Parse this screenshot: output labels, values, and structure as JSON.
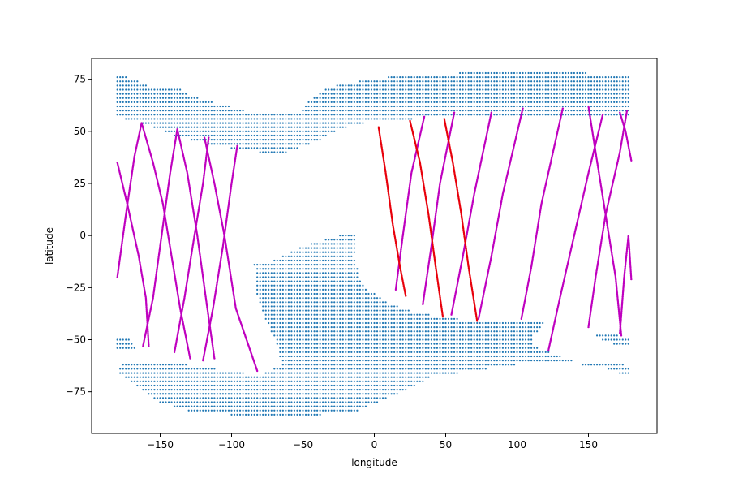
{
  "chart_data": {
    "type": "scatter",
    "title": "",
    "xlabel": "longitude",
    "ylabel": "latitude",
    "xlim": [
      -198,
      198
    ],
    "ylim": [
      -95,
      85
    ],
    "xticks": [
      -150,
      -100,
      -50,
      0,
      50,
      100,
      150
    ],
    "xtick_labels": [
      "−150",
      "−100",
      "−50",
      "0",
      "50",
      "100",
      "150"
    ],
    "yticks": [
      -75,
      -50,
      -25,
      0,
      25,
      50,
      75
    ],
    "ytick_labels": [
      "−75",
      "−50",
      "−25",
      "0",
      "25",
      "50",
      "75"
    ],
    "grid": false,
    "legend": "none",
    "series": [
      {
        "kind": "grid-points",
        "color": "#1f77b4",
        "regions": [
          {
            "lon_step": 2,
            "lat_step": 2,
            "polygon": [
              [
                -180,
                77
              ],
              [
                -167,
                75
              ],
              [
                -158,
                72
              ],
              [
                -136,
                71
              ],
              [
                -130,
                68
              ],
              [
                -120,
                65
              ],
              [
                -100,
                62
              ],
              [
                -90,
                60
              ],
              [
                -80,
                59
              ],
              [
                -55,
                58
              ],
              [
                -48,
                62
              ],
              [
                -45,
                65
              ],
              [
                -34,
                70
              ],
              [
                -22,
                73
              ],
              [
                0,
                75
              ],
              [
                20,
                77
              ],
              [
                40,
                78
              ],
              [
                60,
                78
              ],
              [
                80,
                80
              ],
              [
                100,
                80
              ],
              [
                150,
                78
              ],
              [
                180,
                78
              ],
              [
                180,
                57
              ],
              [
                112,
                58
              ],
              [
                55,
                57
              ],
              [
                0,
                55
              ],
              [
                -25,
                51
              ],
              [
                -40,
                45
              ],
              [
                -60,
                40
              ],
              [
                -80,
                40
              ],
              [
                -112,
                43
              ],
              [
                -140,
                48
              ],
              [
                -163,
                54
              ],
              [
                -180,
                57
              ]
            ]
          },
          {
            "lon_step": 2,
            "lat_step": 2,
            "polygon": [
              [
                -85,
                -13
              ],
              [
                -70,
                -12
              ],
              [
                -50,
                -5
              ],
              [
                -35,
                -2
              ],
              [
                -25,
                0
              ],
              [
                -15,
                2
              ],
              [
                -12,
                0
              ],
              [
                -14,
                -10
              ],
              [
                -10,
                -20
              ],
              [
                -4,
                -26
              ],
              [
                10,
                -32
              ],
              [
                30,
                -37
              ],
              [
                60,
                -40
              ],
              [
                110,
                -41
              ],
              [
                120,
                -41
              ],
              [
                112,
                -48
              ],
              [
                112,
                -53
              ],
              [
                140,
                -60
              ],
              [
                160,
                -60
              ],
              [
                176,
                -62
              ],
              [
                180,
                -64
              ],
              [
                180,
                -68
              ],
              [
                160,
                -63
              ],
              [
                130,
                -61
              ],
              [
                100,
                -62
              ],
              [
                40,
                -68
              ],
              [
                20,
                -75
              ],
              [
                -15,
                -85
              ],
              [
                -60,
                -87
              ],
              [
                -100,
                -86
              ],
              [
                -130,
                -84
              ],
              [
                -150,
                -80
              ],
              [
                -160,
                -75
              ],
              [
                -165,
                -73
              ],
              [
                -170,
                -70
              ],
              [
                -178,
                -66
              ],
              [
                -180,
                -63
              ],
              [
                -170,
                -60
              ],
              [
                -150,
                -60
              ],
              [
                -130,
                -62
              ],
              [
                -100,
                -65
              ],
              [
                -80,
                -67
              ],
              [
                -65,
                -62
              ],
              [
                -68,
                -52
              ],
              [
                -75,
                -42
              ],
              [
                -83,
                -28
              ],
              [
                -82,
                -18
              ]
            ]
          },
          {
            "lon_step": 2,
            "lat_step": 2,
            "polygon": [
              [
                -180,
                -48
              ],
              [
                -172,
                -49
              ],
              [
                -165,
                -55
              ],
              [
                -172,
                -55
              ],
              [
                -180,
                -56
              ]
            ]
          },
          {
            "lon_step": 2,
            "lat_step": 2,
            "polygon": [
              [
                155,
                -47
              ],
              [
                172,
                -48
              ],
              [
                180,
                -49
              ],
              [
                180,
                -54
              ],
              [
                172,
                -53
              ],
              [
                162,
                -51
              ],
              [
                155,
                -48
              ]
            ]
          }
        ]
      },
      {
        "kind": "track",
        "color": "#bf00bf",
        "tracks": [
          [
            [
              -180,
              35
            ],
            [
              -173,
              15
            ],
            [
              -165,
              -10
            ],
            [
              -160,
              -30
            ],
            [
              -158,
              -53
            ]
          ],
          [
            [
              -180,
              -20
            ],
            [
              -174,
              10
            ],
            [
              -168,
              38
            ],
            [
              -163,
              54
            ]
          ],
          [
            [
              -163,
              54
            ],
            [
              -155,
              35
            ],
            [
              -148,
              15
            ],
            [
              -142,
              -10
            ],
            [
              -136,
              -35
            ],
            [
              -129,
              -59
            ]
          ],
          [
            [
              -162,
              -53
            ],
            [
              -155,
              -30
            ],
            [
              -149,
              0
            ],
            [
              -143,
              30
            ],
            [
              -138,
              51
            ]
          ],
          [
            [
              -138,
              51
            ],
            [
              -131,
              30
            ],
            [
              -124,
              0
            ],
            [
              -118,
              -30
            ],
            [
              -112,
              -59
            ]
          ],
          [
            [
              -140,
              -56
            ],
            [
              -133,
              -30
            ],
            [
              -126,
              0
            ],
            [
              -120,
              25
            ],
            [
              -116,
              47
            ]
          ],
          [
            [
              -119,
              47
            ],
            [
              -112,
              25
            ],
            [
              -105,
              0
            ],
            [
              -97,
              -35
            ],
            [
              -82,
              -65
            ]
          ],
          [
            [
              -120,
              -60
            ],
            [
              -113,
              -35
            ],
            [
              -106,
              -5
            ],
            [
              -100,
              25
            ],
            [
              -96,
              43
            ]
          ],
          [
            [
              15,
              -26
            ],
            [
              20,
              0
            ],
            [
              26,
              30
            ],
            [
              35,
              57
            ]
          ],
          [
            [
              34,
              -33
            ],
            [
              40,
              -5
            ],
            [
              46,
              25
            ],
            [
              56,
              59
            ]
          ],
          [
            [
              54,
              -38
            ],
            [
              62,
              -10
            ],
            [
              70,
              20
            ],
            [
              82,
              59
            ]
          ],
          [
            [
              73,
              -40
            ],
            [
              82,
              -10
            ],
            [
              90,
              20
            ],
            [
              104,
              61
            ]
          ],
          [
            [
              103,
              -40
            ],
            [
              110,
              -15
            ],
            [
              117,
              15
            ],
            [
              132,
              61
            ]
          ],
          [
            [
              122,
              -55
            ],
            [
              130,
              -30
            ],
            [
              140,
              0
            ],
            [
              150,
              30
            ],
            [
              160,
              58
            ]
          ],
          [
            [
              150,
              -44
            ],
            [
              155,
              -20
            ],
            [
              162,
              10
            ],
            [
              172,
              40
            ],
            [
              177,
              60
            ]
          ],
          [
            [
              150,
              62
            ],
            [
              155,
              40
            ],
            [
              162,
              10
            ],
            [
              169,
              -20
            ],
            [
              173,
              -48
            ]
          ],
          [
            [
              172,
              -47
            ],
            [
              175,
              -20
            ],
            [
              178,
              0
            ],
            [
              180,
              -21
            ]
          ],
          [
            [
              172,
              59
            ],
            [
              176,
              50
            ],
            [
              180,
              36
            ]
          ]
        ]
      },
      {
        "kind": "track",
        "color": "#e8000b",
        "tracks": [
          [
            [
              3,
              52
            ],
            [
              8,
              30
            ],
            [
              13,
              5
            ],
            [
              18,
              -15
            ],
            [
              22,
              -29
            ]
          ],
          [
            [
              25,
              55
            ],
            [
              32,
              35
            ],
            [
              38,
              10
            ],
            [
              43,
              -15
            ],
            [
              48,
              -39
            ]
          ],
          [
            [
              49,
              56
            ],
            [
              55,
              35
            ],
            [
              61,
              10
            ],
            [
              66,
              -15
            ],
            [
              72,
              -41
            ]
          ]
        ]
      }
    ]
  }
}
